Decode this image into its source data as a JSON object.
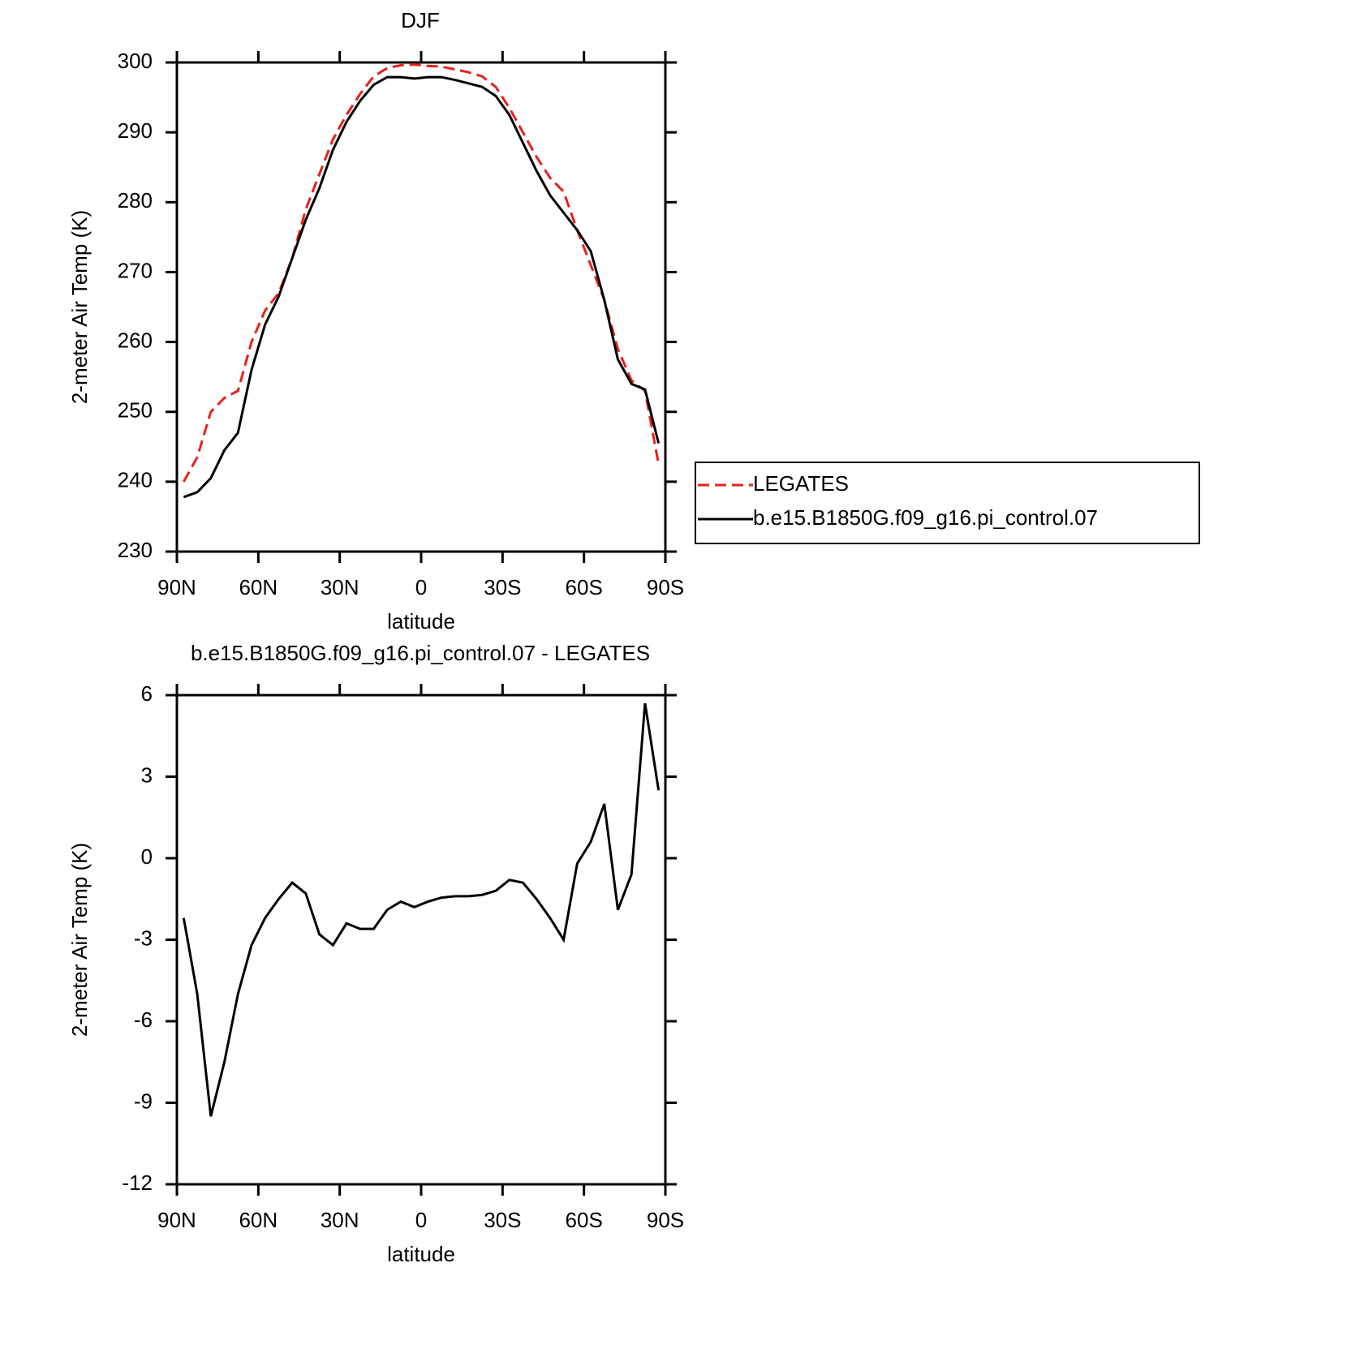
{
  "chart_data": [
    {
      "type": "line",
      "title": "DJF",
      "xlabel": "latitude",
      "ylabel": "2-meter Air Temp (K)",
      "x": [
        87.5,
        82.5,
        77.5,
        72.5,
        67.5,
        62.5,
        57.5,
        52.5,
        47.5,
        42.5,
        37.5,
        32.5,
        27.5,
        22.5,
        17.5,
        12.5,
        7.5,
        2.5,
        -2.5,
        -7.5,
        -12.5,
        -17.5,
        -22.5,
        -27.5,
        -32.5,
        -37.5,
        -42.5,
        -47.5,
        -52.5,
        -57.5,
        -62.5,
        -67.5,
        -72.5,
        -77.5,
        -82.5,
        -87.5
      ],
      "series": [
        {
          "name": "LEGATES",
          "color": "#e8201c",
          "dashed": true,
          "values": [
            240,
            243.5,
            250,
            252,
            253,
            260,
            264.5,
            267,
            272,
            279,
            284,
            289,
            292.5,
            295.5,
            298,
            299.2,
            299.6,
            299.7,
            299.5,
            299.4,
            299,
            298.6,
            298,
            296.5,
            293.5,
            290,
            286.5,
            283.5,
            281.5,
            276,
            271,
            266,
            259,
            254.5,
            253,
            242.5
          ]
        },
        {
          "name": "b.e15.B1850G.f09_g16.pi_control.07",
          "color": "#000000",
          "dashed": false,
          "values": [
            237.8,
            238.5,
            240.5,
            244.5,
            247,
            256,
            262.5,
            266.5,
            272,
            277.5,
            282,
            287.5,
            291.5,
            294.5,
            296.8,
            297.9,
            297.9,
            297.7,
            297.9,
            297.9,
            297.5,
            297,
            296.5,
            295.2,
            292.5,
            288.5,
            284.5,
            281,
            278.5,
            276,
            273,
            266,
            257.5,
            254,
            253.2,
            245.5
          ]
        }
      ],
      "xlim": [
        90,
        -90
      ],
      "xticks": [
        {
          "value": 90,
          "label": "90N"
        },
        {
          "value": 60,
          "label": "60N"
        },
        {
          "value": 30,
          "label": "30N"
        },
        0,
        {
          "value": -30,
          "label": "30S"
        },
        {
          "value": -60,
          "label": "60S"
        },
        {
          "value": -90,
          "label": "90S"
        }
      ],
      "ylim": [
        230,
        300
      ],
      "yticks": [
        230,
        240,
        250,
        260,
        270,
        280,
        290,
        300
      ],
      "legend": "right"
    },
    {
      "type": "line",
      "title": "b.e15.B1850G.f09_g16.pi_control.07 - LEGATES",
      "xlabel": "latitude",
      "ylabel": "2-meter Air Temp (K)",
      "x": [
        87.5,
        82.5,
        77.5,
        72.5,
        67.5,
        62.5,
        57.5,
        52.5,
        47.5,
        42.5,
        37.5,
        32.5,
        27.5,
        22.5,
        17.5,
        12.5,
        7.5,
        2.5,
        -2.5,
        -7.5,
        -12.5,
        -17.5,
        -22.5,
        -27.5,
        -32.5,
        -37.5,
        -42.5,
        -47.5,
        -52.5,
        -57.5,
        -62.5,
        -67.5,
        -72.5,
        -77.5,
        -82.5,
        -87.5
      ],
      "values": [
        -2.2,
        -5.0,
        -9.5,
        -7.5,
        -5.0,
        -3.2,
        -2.2,
        -1.5,
        -0.9,
        -1.3,
        -2.8,
        -3.2,
        -2.4,
        -2.6,
        -2.6,
        -1.9,
        -1.6,
        -1.8,
        -1.6,
        -1.45,
        -1.4,
        -1.4,
        -1.35,
        -1.2,
        -0.8,
        -0.9,
        -1.5,
        -2.2,
        -3.0,
        -0.2,
        0.6,
        2.0,
        -1.9,
        -0.6,
        5.7,
        2.5
      ],
      "color": "#000000",
      "xlim": [
        90,
        -90
      ],
      "xticks": [
        {
          "value": 90,
          "label": "90N"
        },
        {
          "value": 60,
          "label": "60N"
        },
        {
          "value": 30,
          "label": "30N"
        },
        0,
        {
          "value": -30,
          "label": "30S"
        },
        {
          "value": -60,
          "label": "60S"
        },
        {
          "value": -90,
          "label": "90S"
        }
      ],
      "ylim": [
        -12,
        6
      ],
      "yticks": [
        -12,
        -9,
        -6,
        -3,
        0,
        3,
        6
      ]
    }
  ]
}
